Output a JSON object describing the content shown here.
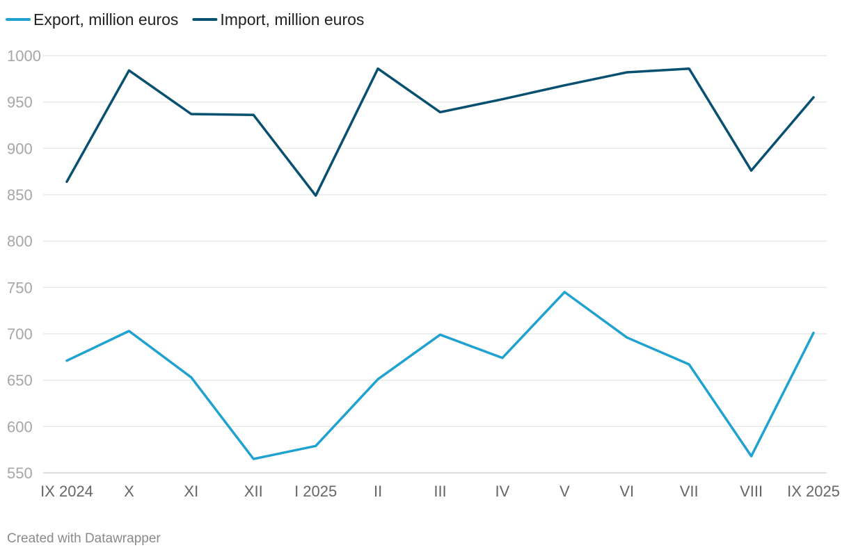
{
  "chart_data": {
    "type": "line",
    "title": "",
    "xlabel": "",
    "ylabel": "",
    "categories": [
      "IX 2024",
      "X",
      "XI",
      "XII",
      "I 2025",
      "II",
      "III",
      "IV",
      "V",
      "VI",
      "VII",
      "VIII",
      "IX 2025"
    ],
    "y_ticks": [
      "1000",
      "950",
      "900",
      "850",
      "800",
      "750",
      "700",
      "650",
      "600",
      "550"
    ],
    "ylim": [
      550,
      1000
    ],
    "grid": true,
    "legend_position": "top-left",
    "series": [
      {
        "name": "Export, million euros",
        "color": "#1fa2cf",
        "values": [
          671,
          703,
          653,
          565,
          579,
          651,
          699,
          674,
          745,
          696,
          667,
          568,
          701
        ]
      },
      {
        "name": "Import, million euros",
        "color": "#08506f",
        "values": [
          864,
          984,
          937,
          936,
          849,
          986,
          939,
          953,
          968,
          982,
          986,
          876,
          955
        ]
      }
    ]
  },
  "footer": {
    "credit": "Created with Datawrapper"
  }
}
